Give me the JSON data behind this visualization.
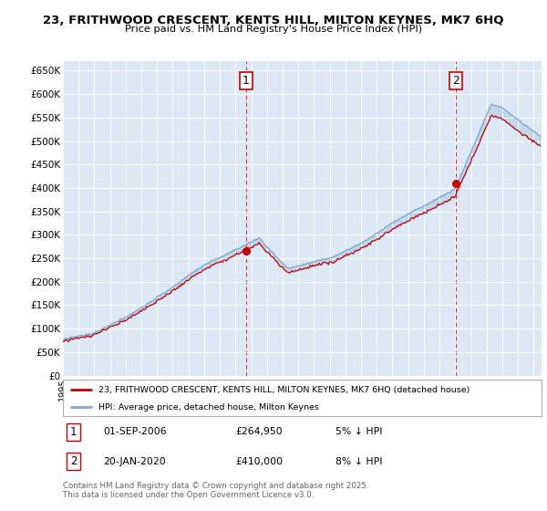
{
  "title": "23, FRITHWOOD CRESCENT, KENTS HILL, MILTON KEYNES, MK7 6HQ",
  "subtitle": "Price paid vs. HM Land Registry's House Price Index (HPI)",
  "ylabel_ticks": [
    "£0",
    "£50K",
    "£100K",
    "£150K",
    "£200K",
    "£250K",
    "£300K",
    "£350K",
    "£400K",
    "£450K",
    "£500K",
    "£550K",
    "£600K",
    "£650K"
  ],
  "ytick_vals": [
    0,
    50000,
    100000,
    150000,
    200000,
    250000,
    300000,
    350000,
    400000,
    450000,
    500000,
    550000,
    600000,
    650000
  ],
  "ylim": [
    0,
    670000
  ],
  "xlim_start": 1995.0,
  "xlim_end": 2025.5,
  "sale1_x": 2006.667,
  "sale1_y": 264950,
  "sale2_x": 2020.05,
  "sale2_y": 410000,
  "sale1_label": "1",
  "sale2_label": "2",
  "hpi_color": "#7aa8d2",
  "price_color": "#cc0000",
  "vline_color": "#ee3333",
  "grid_color": "#cccccc",
  "plot_bg_color": "#dce8f5",
  "bg_color": "#ffffff",
  "legend_line1": "23, FRITHWOOD CRESCENT, KENTS HILL, MILTON KEYNES, MK7 6HQ (detached house)",
  "legend_line2": "HPI: Average price, detached house, Milton Keynes",
  "note1_label": "1",
  "note1_date": "01-SEP-2006",
  "note1_price": "£264,950",
  "note1_pct": "5% ↓ HPI",
  "note2_label": "2",
  "note2_date": "20-JAN-2020",
  "note2_price": "£410,000",
  "note2_pct": "8% ↓ HPI",
  "footer": "Contains HM Land Registry data © Crown copyright and database right 2025.\nThis data is licensed under the Open Government Licence v3.0."
}
